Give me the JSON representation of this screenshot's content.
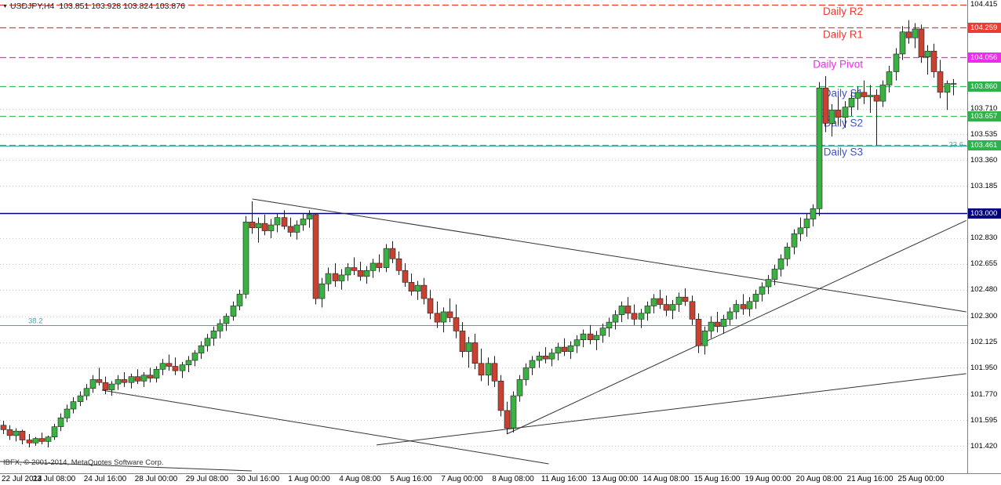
{
  "window": {
    "dropdown_icon": "▼",
    "symbol_period": "USDJPY,H4",
    "quotes": "103.851 103.928 103.824 103.876",
    "copyright": "IBFX, © 2001-2014, MetaQuotes Software Corp."
  },
  "colors": {
    "background": "#ffffff",
    "up_candle": "#3bb143",
    "down_candle": "#c94130",
    "candle_outline": "#1f1f1f",
    "grid": "#c9c9c9",
    "resistance": "#ee3b30",
    "pivot_mid": "#ee2bee",
    "support_line": "#3fbd63",
    "support_text": "#4052ce",
    "hline": "#00007f",
    "fib": "#3fa9a5",
    "trendline": "#333333",
    "axis_text": "#000000",
    "badge_text": "#ffffff"
  },
  "chart_data": {
    "type": "candlestick",
    "symbol": "USDJPY",
    "timeframe": "H4",
    "ohlc_display": {
      "open": 103.851,
      "high": 103.928,
      "low": 103.824,
      "close": 103.876
    },
    "y_axis": {
      "labels": [
        {
          "text": "104.415",
          "style": "plain"
        },
        {
          "text": "104.259",
          "style": "badge",
          "bg": "#ee3b30"
        },
        {
          "text": "104.056",
          "style": "badge",
          "bg": "#ee2bee"
        },
        {
          "text": "103.860",
          "style": "badge",
          "bg": "#2eb34a"
        },
        {
          "text": "103.710",
          "style": "plain"
        },
        {
          "text": "103.657",
          "style": "badge",
          "bg": "#2eb34a"
        },
        {
          "text": "103.535",
          "style": "plain"
        },
        {
          "text": "103.461",
          "style": "badge",
          "bg": "#2eb34a"
        },
        {
          "text": "103.360",
          "style": "plain"
        },
        {
          "text": "103.185",
          "style": "plain"
        },
        {
          "text": "103.000",
          "style": "badge",
          "bg": "#00007f"
        },
        {
          "text": "102.830",
          "style": "plain"
        },
        {
          "text": "102.655",
          "style": "plain"
        },
        {
          "text": "102.480",
          "style": "plain"
        },
        {
          "text": "102.300",
          "style": "plain"
        },
        {
          "text": "102.125",
          "style": "plain"
        },
        {
          "text": "101.950",
          "style": "plain"
        },
        {
          "text": "101.770",
          "style": "plain"
        },
        {
          "text": "101.595",
          "style": "plain"
        },
        {
          "text": "101.420",
          "style": "plain"
        }
      ]
    },
    "x_axis": {
      "bars_per_label": 8,
      "labels": [
        "22 Jul 2014",
        "23 Jul 08:00",
        "24 Jul 16:00",
        "28 Jul 00:00",
        "29 Jul 08:00",
        "30 Jul 16:00",
        "1 Aug 00:00",
        "4 Aug 08:00",
        "5 Aug 16:00",
        "7 Aug 00:00",
        "8 Aug 08:00",
        "11 Aug 16:00",
        "13 Aug 00:00",
        "14 Aug 08:00",
        "15 Aug 16:00",
        "19 Aug 00:00",
        "20 Aug 08:00",
        "21 Aug 16:00",
        "25 Aug 00:00"
      ]
    },
    "pivot_levels": [
      {
        "label": "Daily R2",
        "price": 104.415,
        "line_color": "#ee3b30",
        "label_color": "#ee3b30"
      },
      {
        "label": "Daily R1",
        "price": 104.259,
        "line_color": "#ee3b30",
        "label_color": "#ee3b30"
      },
      {
        "label": "Daily Pivot",
        "price": 104.056,
        "line_color": "#ee2bee",
        "label_color": "#ee2bee"
      },
      {
        "label": "Daily S1",
        "price": 103.86,
        "line_color": "#3fbd63",
        "label_color": "#4052ce"
      },
      {
        "label": "Daily S2",
        "price": 103.657,
        "line_color": "#3fbd63",
        "label_color": "#4052ce"
      },
      {
        "label": "Daily S3",
        "price": 103.461,
        "line_color": "#3fbd63",
        "label_color": "#4052ce"
      }
    ],
    "fib_levels": [
      {
        "label": "23.6",
        "price": 103.455,
        "side": "right"
      },
      {
        "label": "38.2",
        "price": 102.238,
        "side": "left"
      }
    ],
    "hline": {
      "price": 103.0,
      "label": "103.000"
    },
    "trendlines": [
      {
        "b1": 39.1,
        "p1": 103.096,
        "b2": 151.1,
        "p2": 102.33
      },
      {
        "b1": 79.0,
        "p1": 101.5,
        "b2": 151.1,
        "p2": 102.95
      },
      {
        "b1": 15.5,
        "p1": 101.798,
        "b2": 85.6,
        "p2": 101.298
      },
      {
        "b1": 58.6,
        "p1": 101.426,
        "b2": 151.1,
        "p2": 101.91
      },
      {
        "b1": -0.5,
        "p1": 101.314,
        "b2": 39.0,
        "p2": 101.25
      }
    ],
    "candles": [
      [
        101.56,
        101.59,
        101.5,
        101.53
      ],
      [
        101.53,
        101.56,
        101.46,
        101.49
      ],
      [
        101.49,
        101.54,
        101.45,
        101.52
      ],
      [
        101.52,
        101.53,
        101.43,
        101.46
      ],
      [
        101.46,
        101.5,
        101.41,
        101.44
      ],
      [
        101.44,
        101.48,
        101.42,
        101.47
      ],
      [
        101.47,
        101.51,
        101.43,
        101.45
      ],
      [
        101.45,
        101.49,
        101.41,
        101.48
      ],
      [
        101.48,
        101.57,
        101.46,
        101.55
      ],
      [
        101.55,
        101.64,
        101.52,
        101.61
      ],
      [
        101.61,
        101.7,
        101.58,
        101.67
      ],
      [
        101.67,
        101.75,
        101.64,
        101.72
      ],
      [
        101.72,
        101.79,
        101.69,
        101.76
      ],
      [
        101.76,
        101.84,
        101.73,
        101.81
      ],
      [
        101.81,
        101.9,
        101.78,
        101.87
      ],
      [
        101.87,
        101.95,
        101.83,
        101.85
      ],
      [
        101.85,
        101.89,
        101.77,
        101.8
      ],
      [
        101.8,
        101.86,
        101.76,
        101.84
      ],
      [
        101.84,
        101.9,
        101.8,
        101.87
      ],
      [
        101.87,
        101.92,
        101.82,
        101.85
      ],
      [
        101.85,
        101.91,
        101.81,
        101.89
      ],
      [
        101.89,
        101.94,
        101.84,
        101.86
      ],
      [
        101.86,
        101.92,
        101.82,
        101.9
      ],
      [
        101.9,
        101.95,
        101.85,
        101.88
      ],
      [
        101.88,
        101.96,
        101.85,
        101.94
      ],
      [
        101.94,
        102.01,
        101.9,
        101.98
      ],
      [
        101.98,
        102.04,
        101.93,
        101.96
      ],
      [
        101.96,
        102.02,
        101.9,
        101.93
      ],
      [
        101.93,
        101.99,
        101.88,
        101.97
      ],
      [
        101.97,
        102.03,
        101.92,
        102.0
      ],
      [
        102.0,
        102.07,
        101.96,
        102.05
      ],
      [
        102.05,
        102.13,
        102.01,
        102.1
      ],
      [
        102.1,
        102.18,
        102.06,
        102.15
      ],
      [
        102.15,
        102.23,
        102.1,
        102.2
      ],
      [
        102.2,
        102.28,
        102.15,
        102.25
      ],
      [
        102.25,
        102.32,
        102.2,
        102.3
      ],
      [
        102.3,
        102.4,
        102.27,
        102.37
      ],
      [
        102.37,
        102.48,
        102.34,
        102.45
      ],
      [
        102.45,
        102.98,
        102.42,
        102.94
      ],
      [
        102.94,
        103.08,
        102.86,
        102.9
      ],
      [
        102.9,
        102.97,
        102.8,
        102.93
      ],
      [
        102.93,
        102.99,
        102.85,
        102.88
      ],
      [
        102.88,
        102.96,
        102.83,
        102.92
      ],
      [
        102.92,
        103.0,
        102.87,
        102.97
      ],
      [
        102.97,
        103.02,
        102.89,
        102.91
      ],
      [
        102.91,
        102.97,
        102.84,
        102.87
      ],
      [
        102.87,
        102.95,
        102.82,
        102.92
      ],
      [
        102.92,
        103.0,
        102.88,
        102.96
      ],
      [
        102.96,
        103.02,
        102.9,
        102.99
      ],
      [
        102.99,
        103.0,
        102.38,
        102.42
      ],
      [
        102.42,
        102.56,
        102.36,
        102.52
      ],
      [
        102.52,
        102.63,
        102.47,
        102.59
      ],
      [
        102.59,
        102.66,
        102.5,
        102.54
      ],
      [
        102.54,
        102.62,
        102.48,
        102.58
      ],
      [
        102.58,
        102.66,
        102.54,
        102.63
      ],
      [
        102.63,
        102.7,
        102.58,
        102.61
      ],
      [
        102.61,
        102.67,
        102.54,
        102.57
      ],
      [
        102.57,
        102.64,
        102.52,
        102.61
      ],
      [
        102.61,
        102.69,
        102.56,
        102.66
      ],
      [
        102.66,
        102.72,
        102.6,
        102.63
      ],
      [
        102.63,
        102.79,
        102.6,
        102.76
      ],
      [
        102.76,
        102.81,
        102.66,
        102.69
      ],
      [
        102.69,
        102.74,
        102.58,
        102.61
      ],
      [
        102.61,
        102.66,
        102.5,
        102.53
      ],
      [
        102.53,
        102.59,
        102.44,
        102.47
      ],
      [
        102.47,
        102.54,
        102.41,
        102.51
      ],
      [
        102.51,
        102.56,
        102.38,
        102.42
      ],
      [
        102.42,
        102.48,
        102.28,
        102.32
      ],
      [
        102.32,
        102.4,
        102.22,
        102.26
      ],
      [
        102.26,
        102.36,
        102.19,
        102.33
      ],
      [
        102.33,
        102.42,
        102.26,
        102.29
      ],
      [
        102.29,
        102.38,
        102.15,
        102.2
      ],
      [
        102.2,
        102.26,
        102.02,
        102.06
      ],
      [
        102.06,
        102.16,
        101.95,
        102.12
      ],
      [
        102.12,
        102.18,
        101.94,
        101.98
      ],
      [
        101.98,
        102.08,
        101.86,
        101.9
      ],
      [
        101.9,
        102.02,
        101.83,
        101.98
      ],
      [
        101.98,
        102.03,
        101.82,
        101.86
      ],
      [
        101.86,
        101.9,
        101.62,
        101.66
      ],
      [
        101.66,
        101.72,
        101.5,
        101.54
      ],
      [
        101.54,
        101.79,
        101.51,
        101.76
      ],
      [
        101.76,
        101.9,
        101.72,
        101.87
      ],
      [
        101.87,
        101.98,
        101.83,
        101.95
      ],
      [
        101.95,
        102.03,
        101.9,
        102.0
      ],
      [
        102.0,
        102.06,
        101.95,
        102.03
      ],
      [
        102.03,
        102.09,
        101.98,
        102.01
      ],
      [
        102.01,
        102.08,
        101.96,
        102.05
      ],
      [
        102.05,
        102.12,
        102.0,
        102.09
      ],
      [
        102.09,
        102.15,
        102.03,
        102.06
      ],
      [
        102.06,
        102.13,
        102.01,
        102.1
      ],
      [
        102.1,
        102.17,
        102.05,
        102.14
      ],
      [
        102.14,
        102.21,
        102.09,
        102.18
      ],
      [
        102.18,
        102.24,
        102.11,
        102.14
      ],
      [
        102.14,
        102.2,
        102.07,
        102.17
      ],
      [
        102.17,
        102.25,
        102.12,
        102.22
      ],
      [
        102.22,
        102.29,
        102.16,
        102.26
      ],
      [
        102.26,
        102.34,
        102.21,
        102.31
      ],
      [
        102.31,
        102.4,
        102.26,
        102.37
      ],
      [
        102.37,
        102.43,
        102.28,
        102.32
      ],
      [
        102.32,
        102.38,
        102.24,
        102.28
      ],
      [
        102.28,
        102.35,
        102.22,
        102.32
      ],
      [
        102.32,
        102.4,
        102.27,
        102.37
      ],
      [
        102.37,
        102.45,
        102.32,
        102.42
      ],
      [
        102.42,
        102.48,
        102.35,
        102.38
      ],
      [
        102.38,
        102.44,
        102.3,
        102.34
      ],
      [
        102.34,
        102.41,
        102.28,
        102.38
      ],
      [
        102.38,
        102.46,
        102.33,
        102.43
      ],
      [
        102.43,
        102.49,
        102.37,
        102.4
      ],
      [
        102.4,
        102.44,
        102.24,
        102.28
      ],
      [
        102.28,
        102.32,
        102.05,
        102.1
      ],
      [
        102.1,
        102.23,
        102.04,
        102.2
      ],
      [
        102.2,
        102.3,
        102.15,
        102.26
      ],
      [
        102.26,
        102.33,
        102.19,
        102.23
      ],
      [
        102.23,
        102.31,
        102.18,
        102.28
      ],
      [
        102.28,
        102.36,
        102.24,
        102.33
      ],
      [
        102.33,
        102.41,
        102.28,
        102.38
      ],
      [
        102.38,
        102.45,
        102.31,
        102.35
      ],
      [
        102.35,
        102.43,
        102.3,
        102.4
      ],
      [
        102.4,
        102.48,
        102.35,
        102.45
      ],
      [
        102.45,
        102.53,
        102.4,
        102.5
      ],
      [
        102.5,
        102.58,
        102.45,
        102.55
      ],
      [
        102.55,
        102.65,
        102.51,
        102.62
      ],
      [
        102.62,
        102.72,
        102.57,
        102.69
      ],
      [
        102.69,
        102.8,
        102.64,
        102.77
      ],
      [
        102.77,
        102.89,
        102.72,
        102.86
      ],
      [
        102.86,
        102.97,
        102.81,
        102.9
      ],
      [
        102.9,
        103.0,
        102.84,
        102.96
      ],
      [
        102.96,
        103.06,
        102.91,
        103.03
      ],
      [
        103.03,
        103.89,
        102.98,
        103.85
      ],
      [
        103.85,
        103.93,
        103.55,
        103.61
      ],
      [
        103.61,
        103.74,
        103.52,
        103.7
      ],
      [
        103.7,
        103.79,
        103.6,
        103.65
      ],
      [
        103.65,
        103.76,
        103.58,
        103.72
      ],
      [
        103.72,
        103.82,
        103.66,
        103.78
      ],
      [
        103.78,
        103.86,
        103.7,
        103.82
      ],
      [
        103.82,
        103.9,
        103.74,
        103.79
      ],
      [
        103.79,
        103.87,
        103.68,
        103.8
      ],
      [
        103.8,
        103.84,
        103.46,
        103.76
      ],
      [
        103.76,
        103.9,
        103.72,
        103.87
      ],
      [
        103.87,
        104.0,
        103.82,
        103.96
      ],
      [
        103.96,
        104.12,
        103.9,
        104.08
      ],
      [
        104.08,
        104.27,
        104.04,
        104.23
      ],
      [
        104.23,
        104.31,
        104.15,
        104.19
      ],
      [
        104.19,
        104.29,
        104.12,
        104.25
      ],
      [
        104.25,
        104.28,
        104.02,
        104.06
      ],
      [
        104.06,
        104.14,
        103.94,
        104.1
      ],
      [
        104.1,
        104.15,
        103.92,
        103.96
      ],
      [
        103.96,
        104.04,
        103.78,
        103.82
      ],
      [
        103.82,
        103.9,
        103.7,
        103.88
      ],
      [
        103.88,
        103.91,
        103.8,
        103.88
      ]
    ]
  }
}
